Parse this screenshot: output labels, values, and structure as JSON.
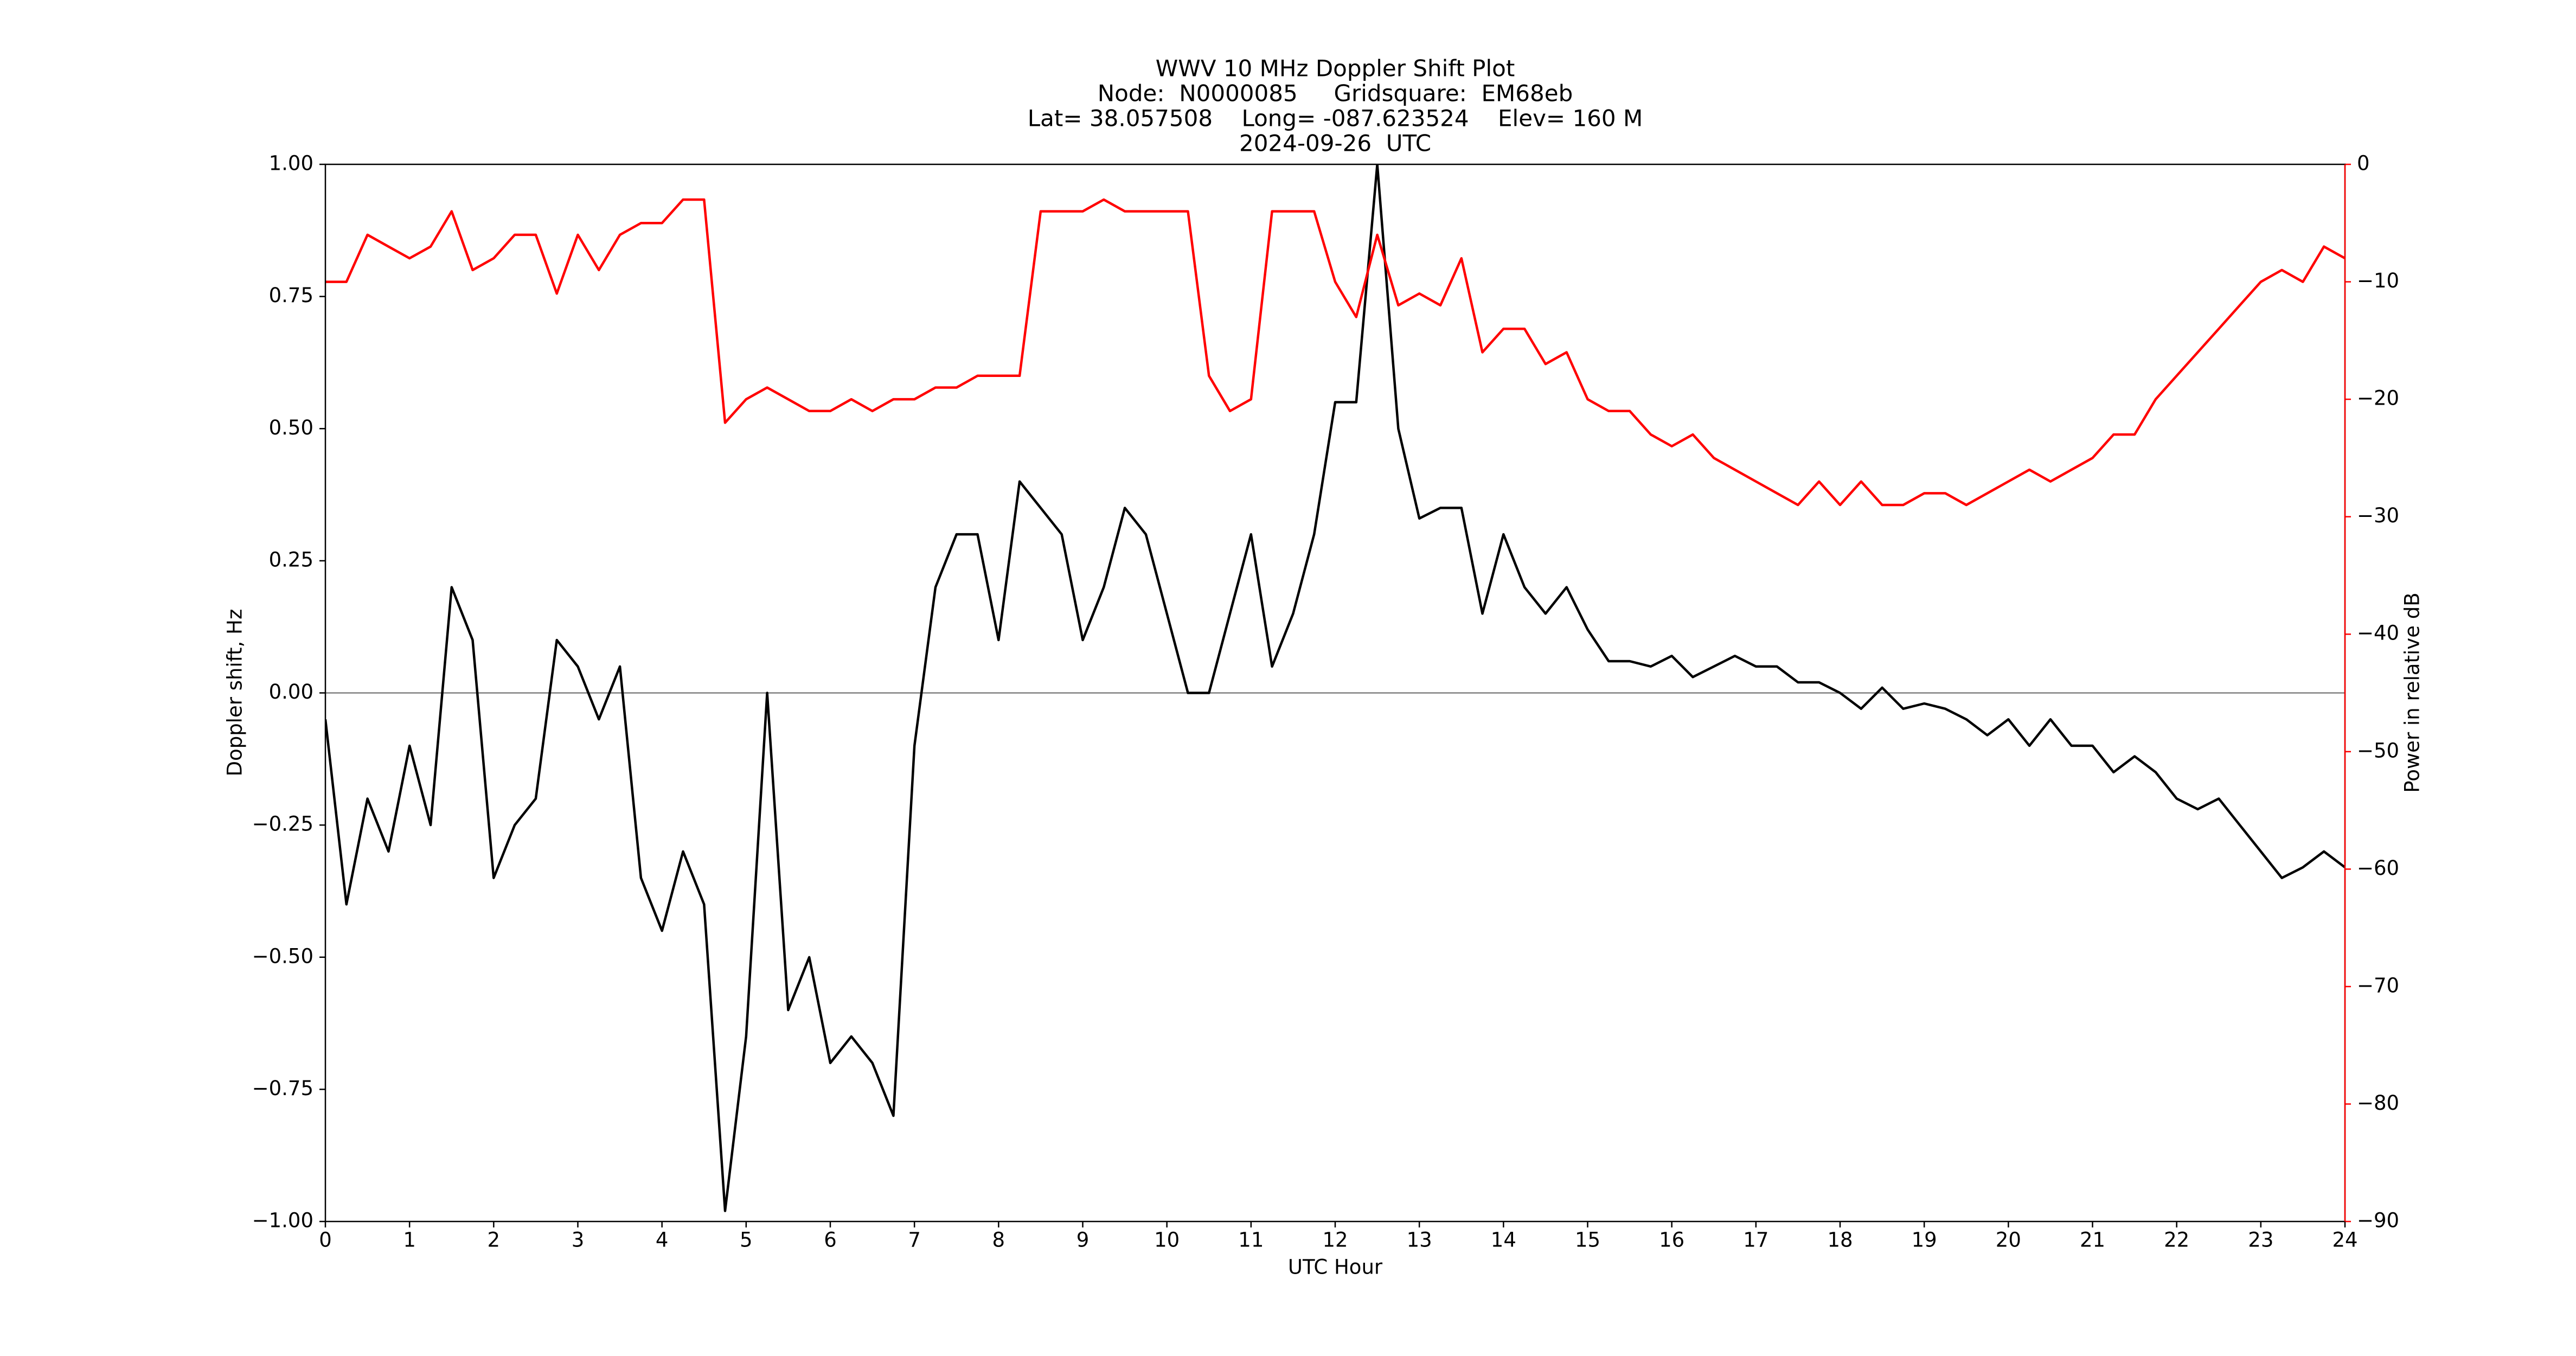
{
  "chart_data": {
    "type": "line",
    "title": "WWV 10 MHz Doppler Shift Plot",
    "subtitle": [
      "Node:  N0000085     Gridsquare:  EM68eb",
      "Lat= 38.057508    Long= -087.623524    Elev= 160 M",
      "2024-09-26  UTC"
    ],
    "xlabel": "UTC Hour",
    "ylabel": "Doppler shift, Hz",
    "y2label": "Power in relative dB",
    "x": [
      0,
      0.25,
      0.5,
      0.75,
      1,
      1.25,
      1.5,
      1.75,
      2,
      2.25,
      2.5,
      2.75,
      3,
      3.25,
      3.5,
      3.75,
      4,
      4.25,
      4.5,
      4.75,
      5,
      5.25,
      5.5,
      5.75,
      6,
      6.25,
      6.5,
      6.75,
      7,
      7.25,
      7.5,
      7.75,
      8,
      8.25,
      8.5,
      8.75,
      9,
      9.25,
      9.5,
      9.75,
      10,
      10.25,
      10.5,
      10.75,
      11,
      11.25,
      11.5,
      11.75,
      12,
      12.25,
      12.5,
      12.75,
      13,
      13.25,
      13.5,
      13.75,
      14,
      14.25,
      14.5,
      14.75,
      15,
      15.25,
      15.5,
      15.75,
      16,
      16.25,
      16.5,
      16.75,
      17,
      17.25,
      17.5,
      17.75,
      18,
      18.25,
      18.5,
      18.75,
      19,
      19.25,
      19.5,
      19.75,
      20,
      20.25,
      20.5,
      20.75,
      21,
      21.25,
      21.5,
      21.75,
      22,
      22.25,
      22.5,
      22.75,
      23,
      23.25,
      23.5,
      23.75,
      24
    ],
    "series": [
      {
        "name": "Doppler shift",
        "color": "#000000",
        "values": [
          -0.05,
          -0.4,
          -0.2,
          -0.3,
          -0.1,
          -0.25,
          0.2,
          0.1,
          -0.35,
          -0.25,
          -0.2,
          0.1,
          0.05,
          -0.05,
          0.05,
          -0.35,
          -0.45,
          -0.3,
          -0.4,
          -0.98,
          -0.65,
          0.0,
          -0.6,
          -0.5,
          -0.7,
          -0.65,
          -0.7,
          -0.8,
          -0.1,
          0.2,
          0.3,
          0.3,
          0.1,
          0.4,
          0.35,
          0.3,
          0.1,
          0.2,
          0.35,
          0.3,
          0.15,
          0.0,
          0.0,
          0.15,
          0.3,
          0.05,
          0.15,
          0.3,
          0.55,
          0.55,
          1.0,
          0.5,
          0.33,
          0.35,
          0.35,
          0.15,
          0.3,
          0.2,
          0.15,
          0.2,
          0.12,
          0.06,
          0.06,
          0.05,
          0.07,
          0.03,
          0.05,
          0.07,
          0.05,
          0.05,
          0.02,
          0.02,
          0.0,
          -0.03,
          0.01,
          -0.03,
          -0.02,
          -0.03,
          -0.05,
          -0.08,
          -0.05,
          -0.1,
          -0.05,
          -0.1,
          -0.1,
          -0.15,
          -0.12,
          -0.15,
          -0.2,
          -0.22,
          -0.2,
          -0.25,
          -0.3,
          -0.35,
          -0.33,
          -0.3,
          -0.33
        ]
      },
      {
        "name": "Power",
        "color": "#ff0000",
        "axis": "y2",
        "values": [
          -10,
          -10,
          -6,
          -7,
          -8,
          -7,
          -4,
          -9,
          -8,
          -6,
          -6,
          -11,
          -6,
          -9,
          -6,
          -5,
          -5,
          -3,
          -3,
          -22,
          -20,
          -19,
          -20,
          -21,
          -21,
          -20,
          -21,
          -20,
          -20,
          -19,
          -19,
          -18,
          -18,
          -18,
          -4,
          -4,
          -4,
          -3,
          -4,
          -4,
          -4,
          -4,
          -18,
          -21,
          -20,
          -4,
          -4,
          -4,
          -10,
          -13,
          -6,
          -12,
          -11,
          -12,
          -8,
          -16,
          -14,
          -14,
          -17,
          -16,
          -20,
          -21,
          -21,
          -23,
          -24,
          -23,
          -25,
          -26,
          -27,
          -28,
          -29,
          -27,
          -29,
          -27,
          -29,
          -29,
          -28,
          -28,
          -29,
          -28,
          -27,
          -26,
          -27,
          -26,
          -25,
          -23,
          -23,
          -20,
          -18,
          -16,
          -14,
          -12,
          -10,
          -9,
          -10,
          -7,
          -8
        ]
      }
    ],
    "xlim": [
      0,
      24
    ],
    "xticks": [
      0,
      1,
      2,
      3,
      4,
      5,
      6,
      7,
      8,
      9,
      10,
      11,
      12,
      13,
      14,
      15,
      16,
      17,
      18,
      19,
      20,
      21,
      22,
      23,
      24
    ],
    "ylim": [
      -1,
      1
    ],
    "yticks": [
      {
        "value": -1,
        "label": "−1.00"
      },
      {
        "value": -0.75,
        "label": "−0.75"
      },
      {
        "value": -0.5,
        "label": "−0.50"
      },
      {
        "value": -0.25,
        "label": "−0.25"
      },
      {
        "value": 0,
        "label": "0.00"
      },
      {
        "value": 0.25,
        "label": "0.25"
      },
      {
        "value": 0.5,
        "label": "0.50"
      },
      {
        "value": 0.75,
        "label": "0.75"
      },
      {
        "value": 1,
        "label": "1.00"
      }
    ],
    "y2lim": [
      -90,
      0
    ],
    "y2ticks": [
      {
        "value": -90,
        "label": "−90"
      },
      {
        "value": -80,
        "label": "−80"
      },
      {
        "value": -70,
        "label": "−70"
      },
      {
        "value": -60,
        "label": "−60"
      },
      {
        "value": -50,
        "label": "−50"
      },
      {
        "value": -40,
        "label": "−40"
      },
      {
        "value": -30,
        "label": "−30"
      },
      {
        "value": -20,
        "label": "−20"
      },
      {
        "value": -10,
        "label": "−10"
      },
      0
    ],
    "zero_line": true,
    "y2_color": "#ff0000"
  }
}
